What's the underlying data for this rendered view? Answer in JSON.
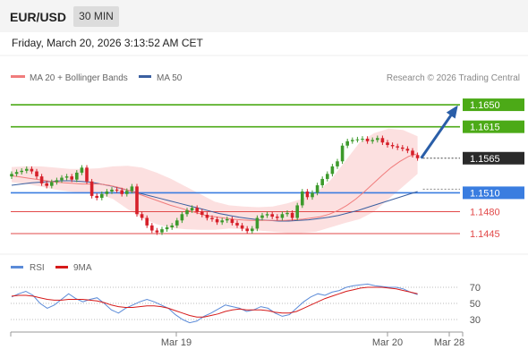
{
  "header": {
    "symbol": "EUR/USD",
    "timeframe": "30 MIN"
  },
  "datetime": "Friday, March 20, 2026 3:13:52 AM CET",
  "legend": {
    "ma20": "MA 20 + Bollinger Bands",
    "ma50": "MA 50",
    "source": "Research © 2026 Trading Central"
  },
  "rsi_legend": {
    "rsi": "RSI",
    "ma9": "9MA"
  },
  "colors": {
    "up": "#3d9a2c",
    "down": "#d6202a",
    "ma20": "#f07c7c",
    "ma50": "#3a5fa0",
    "bb_fill": "#fbd6d6",
    "target": "#4caa17",
    "support": "#3a7de0",
    "sup_lines": "#e24a4a",
    "arrow": "#2a5ea8",
    "rsi": "#5b8bd8",
    "rsi_ma": "#d61a1a"
  },
  "chart_data": [
    {
      "type": "candlestick",
      "series_name": "EUR/USD",
      "x_ticks": [
        "Mar 19",
        "Mar 20",
        "Mar 28"
      ],
      "ylim": [
        1.1418,
        1.168
      ],
      "levels": [
        {
          "value": 1.165,
          "label": "1.1650",
          "role": "target"
        },
        {
          "value": 1.1615,
          "label": "1.1615",
          "role": "target"
        },
        {
          "value": 1.1565,
          "label": "1.1565",
          "role": "current"
        },
        {
          "value": 1.151,
          "label": "1.1510",
          "role": "pivot"
        },
        {
          "value": 1.148,
          "label": "1.1480",
          "role": "support"
        },
        {
          "value": 1.1445,
          "label": "1.1445",
          "role": "support"
        }
      ],
      "closes": [
        1.154,
        1.1543,
        1.1545,
        1.1548,
        1.1544,
        1.1536,
        1.1525,
        1.1521,
        1.1527,
        1.153,
        1.1534,
        1.1536,
        1.1531,
        1.1542,
        1.155,
        1.1528,
        1.1505,
        1.1502,
        1.1508,
        1.1512,
        1.1515,
        1.1514,
        1.1508,
        1.1513,
        1.152,
        1.1476,
        1.147,
        1.1458,
        1.145,
        1.1447,
        1.1452,
        1.1455,
        1.1458,
        1.1466,
        1.1476,
        1.1482,
        1.1486,
        1.148,
        1.1475,
        1.147,
        1.1468,
        1.1463,
        1.1466,
        1.1468,
        1.1462,
        1.1458,
        1.1453,
        1.1449,
        1.1453,
        1.147,
        1.1474,
        1.1476,
        1.1472,
        1.147,
        1.1476,
        1.1478,
        1.147,
        1.149,
        1.1512,
        1.1503,
        1.151,
        1.1522,
        1.1532,
        1.154,
        1.1552,
        1.156,
        1.1585,
        1.1592,
        1.1594,
        1.1595,
        1.1596,
        1.1592,
        1.1594,
        1.1597,
        1.159,
        1.1586,
        1.1584,
        1.1582,
        1.158,
        1.1577,
        1.157,
        1.1565
      ],
      "ma20": [
        1.1537,
        1.1535,
        1.1533,
        1.1531,
        1.1529,
        1.1527,
        1.1526,
        1.1525,
        1.1524,
        1.1524,
        1.1524,
        1.1522,
        1.1519,
        1.1515,
        1.151,
        1.1505,
        1.15,
        1.1495,
        1.149,
        1.1486,
        1.1482,
        1.1478,
        1.1474,
        1.1472,
        1.147,
        1.1468,
        1.1467,
        1.1466,
        1.1466,
        1.1466,
        1.1466,
        1.1466,
        1.1467,
        1.1468,
        1.147,
        1.1472,
        1.1476,
        1.1482,
        1.149,
        1.15,
        1.1512,
        1.1525,
        1.1538,
        1.155,
        1.156,
        1.1568,
        1.1572
      ],
      "ma50": [
        1.1522,
        1.1524,
        1.1526,
        1.1527,
        1.1528,
        1.1529,
        1.1529,
        1.1528,
        1.1527,
        1.1524,
        1.1521,
        1.1517,
        1.1513,
        1.1509,
        1.1505,
        1.1501,
        1.1497,
        1.1493,
        1.1489,
        1.1485,
        1.1481,
        1.1477,
        1.1474,
        1.1471,
        1.1469,
        1.1467,
        1.1466,
        1.1465,
        1.1465,
        1.1466,
        1.1467,
        1.1469,
        1.1471,
        1.1474,
        1.1478,
        1.1482,
        1.1487,
        1.1492,
        1.1497,
        1.1502,
        1.1507,
        1.1512
      ],
      "bb_upper": [
        1.1551,
        1.1552,
        1.1552,
        1.155,
        1.1548,
        1.1548,
        1.1549,
        1.1552,
        1.1553,
        1.155,
        1.1542,
        1.1532,
        1.152,
        1.1508,
        1.1496,
        1.149,
        1.1488,
        1.1487,
        1.1488,
        1.1493,
        1.15,
        1.151,
        1.153,
        1.156,
        1.159,
        1.1605,
        1.1612,
        1.161,
        1.16
      ],
      "bb_lower": [
        1.1527,
        1.1524,
        1.152,
        1.1515,
        1.1512,
        1.151,
        1.1508,
        1.15,
        1.1484,
        1.147,
        1.146,
        1.1454,
        1.1452,
        1.1451,
        1.1451,
        1.1453,
        1.1452,
        1.145,
        1.1448,
        1.1446,
        1.1446,
        1.1448,
        1.1455,
        1.1462,
        1.1468,
        1.148,
        1.15,
        1.152,
        1.154
      ],
      "projection": [
        1.1565,
        1.165
      ]
    },
    {
      "type": "line",
      "title": "RSI",
      "ylim": [
        20,
        80
      ],
      "y_ticks": [
        70,
        50,
        30
      ],
      "series": [
        {
          "name": "RSI",
          "values": [
            58,
            62,
            65,
            60,
            50,
            44,
            48,
            55,
            62,
            56,
            52,
            55,
            57,
            50,
            42,
            38,
            44,
            48,
            52,
            55,
            52,
            48,
            44,
            36,
            30,
            26,
            28,
            34,
            38,
            43,
            48,
            46,
            44,
            40,
            42,
            46,
            44,
            38,
            34,
            36,
            44,
            52,
            58,
            62,
            60,
            64,
            66,
            70,
            72,
            73,
            74,
            72,
            71,
            70,
            70,
            68,
            64,
            61
          ]
        },
        {
          "name": "9MA",
          "values": [
            59,
            60,
            60,
            59,
            57,
            55,
            54,
            54,
            55,
            55,
            55,
            54,
            53,
            51,
            48,
            46,
            45,
            45,
            46,
            47,
            47,
            46,
            44,
            41,
            38,
            35,
            33,
            33,
            35,
            37,
            40,
            42,
            43,
            42,
            42,
            42,
            41,
            39,
            38,
            38,
            40,
            44,
            48,
            52,
            56,
            59,
            62,
            65,
            67,
            69,
            70,
            70,
            70,
            69,
            68,
            66,
            64,
            62
          ]
        }
      ]
    }
  ]
}
